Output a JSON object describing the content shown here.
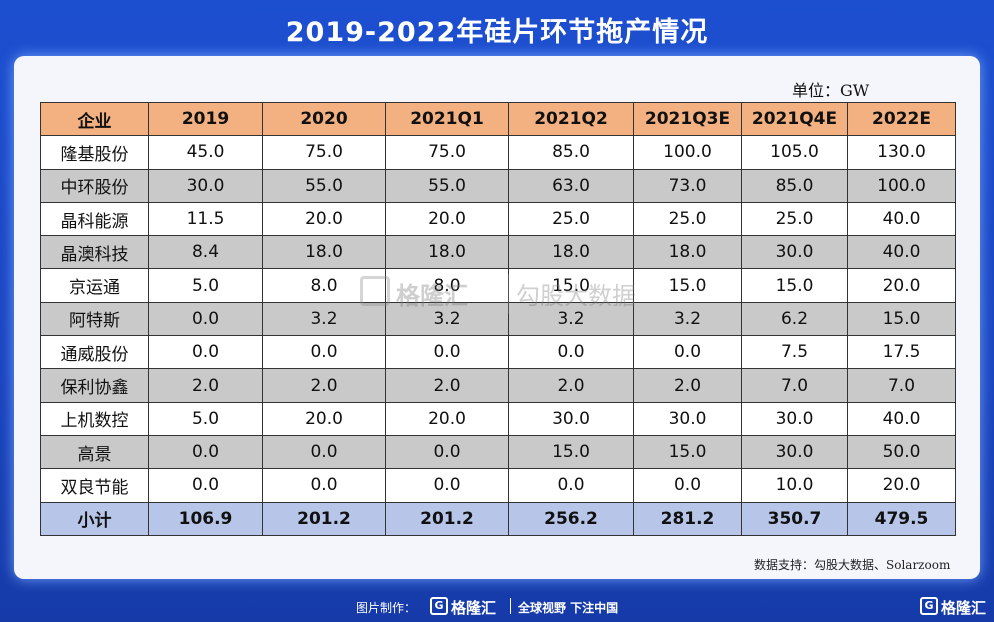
{
  "title": "2019-2022年硅片环节拖产情况",
  "unit_label": "单位：GW",
  "source": "数据支持：勾股大数据、Solarzoom",
  "watermark": {
    "brand": "格隆汇",
    "text": "勾股大数据"
  },
  "footer": {
    "credit": "图片制作：",
    "logo_letter": "G",
    "brand": "格隆汇",
    "slogan": "全球视野 下注中国",
    "corner_brand": "格隆汇"
  },
  "chart_data": {
    "type": "table",
    "title": "2019-2022年硅片环节拖产情况",
    "unit": "GW",
    "columns": [
      "企业",
      "2019",
      "2020",
      "2021Q1",
      "2021Q2",
      "2021Q3E",
      "2021Q4E",
      "2022E"
    ],
    "rows": [
      [
        "隆基股份",
        "45.0",
        "75.0",
        "75.0",
        "85.0",
        "100.0",
        "105.0",
        "130.0"
      ],
      [
        "中环股份",
        "30.0",
        "55.0",
        "55.0",
        "63.0",
        "73.0",
        "85.0",
        "100.0"
      ],
      [
        "晶科能源",
        "11.5",
        "20.0",
        "20.0",
        "25.0",
        "25.0",
        "25.0",
        "40.0"
      ],
      [
        "晶澳科技",
        "8.4",
        "18.0",
        "18.0",
        "18.0",
        "18.0",
        "30.0",
        "40.0"
      ],
      [
        "京运通",
        "5.0",
        "8.0",
        "8.0",
        "15.0",
        "15.0",
        "15.0",
        "20.0"
      ],
      [
        "阿特斯",
        "0.0",
        "3.2",
        "3.2",
        "3.2",
        "3.2",
        "6.2",
        "15.0"
      ],
      [
        "通威股份",
        "0.0",
        "0.0",
        "0.0",
        "0.0",
        "0.0",
        "7.5",
        "17.5"
      ],
      [
        "保利协鑫",
        "2.0",
        "2.0",
        "2.0",
        "2.0",
        "2.0",
        "7.0",
        "7.0"
      ],
      [
        "上机数控",
        "5.0",
        "20.0",
        "20.0",
        "30.0",
        "30.0",
        "30.0",
        "40.0"
      ],
      [
        "高景",
        "0.0",
        "0.0",
        "0.0",
        "15.0",
        "15.0",
        "30.0",
        "50.0"
      ],
      [
        "双良节能",
        "0.0",
        "0.0",
        "0.0",
        "0.0",
        "0.0",
        "10.0",
        "20.0"
      ]
    ],
    "total": [
      "小计",
      "106.9",
      "201.2",
      "201.2",
      "256.2",
      "281.2",
      "350.7",
      "479.5"
    ]
  }
}
